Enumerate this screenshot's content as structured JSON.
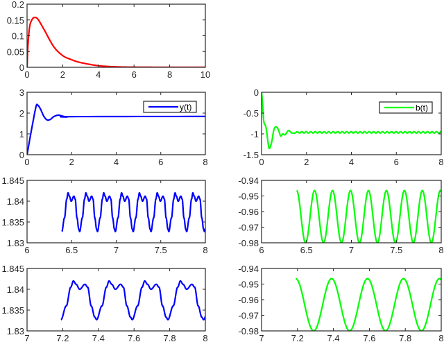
{
  "chart_data": [
    {
      "type": "line",
      "id": "p1",
      "xlim": [
        0,
        10
      ],
      "ylim": [
        0,
        0.2
      ],
      "xticks": [
        0,
        2,
        4,
        6,
        8,
        10
      ],
      "xtick_labels": [
        "0",
        "2",
        "4",
        "6",
        "8",
        "10"
      ],
      "yticks": [
        0,
        0.05,
        0.1,
        0.15,
        0.2
      ],
      "ytick_labels": [
        "0",
        "0.05",
        "0.1",
        "0.15",
        "0.2"
      ],
      "color": "#ff0000",
      "series": [
        {
          "x": [
            0,
            0.05,
            0.15,
            0.3,
            0.45,
            0.6,
            0.8,
            1,
            1.5,
            2,
            2.5,
            3,
            4,
            5,
            6,
            8,
            10
          ],
          "y": [
            0,
            0.07,
            0.13,
            0.153,
            0.158,
            0.153,
            0.135,
            0.115,
            0.065,
            0.037,
            0.024,
            0.015,
            0.005,
            0.0015,
            0.0005,
            0,
            0
          ]
        }
      ]
    },
    {
      "type": "line",
      "id": "p2",
      "xlim": [
        0,
        8
      ],
      "ylim": [
        0,
        3
      ],
      "xticks": [
        0,
        2,
        4,
        6,
        8
      ],
      "xtick_labels": [
        "0",
        "2",
        "4",
        "6",
        "8"
      ],
      "yticks": [
        0,
        1,
        2,
        3
      ],
      "ytick_labels": [
        "0",
        "1",
        "2",
        "3"
      ],
      "color": "#0000ff",
      "legend": "top-right",
      "series": [
        {
          "name": "y(t)",
          "x": [
            0,
            0.2,
            0.4,
            0.48,
            0.6,
            0.75,
            0.9,
            1.05,
            1.2,
            1.4,
            1.6,
            1.8,
            2,
            8
          ],
          "y": [
            0,
            1.2,
            2.3,
            2.38,
            2.2,
            1.85,
            1.67,
            1.7,
            1.83,
            1.9,
            1.85,
            1.81,
            1.83,
            1.837
          ]
        }
      ]
    },
    {
      "type": "line",
      "id": "p3",
      "xlim": [
        0,
        8
      ],
      "ylim": [
        -1.5,
        0
      ],
      "xticks": [
        0,
        2,
        4,
        6,
        8
      ],
      "xtick_labels": [
        "0",
        "2",
        "4",
        "6",
        "8"
      ],
      "yticks": [
        -1.5,
        -1,
        -0.5,
        0
      ],
      "ytick_labels": [
        "-1.5",
        "-1",
        "-0.5",
        "0"
      ],
      "color": "#00ff00",
      "legend": "top-right",
      "series": [
        {
          "name": "b(t)",
          "x": [
            0,
            0.05,
            0.1,
            0.2,
            0.3,
            0.35,
            0.45,
            0.55,
            0.65,
            0.75,
            0.85,
            0.95,
            1.05,
            1.2,
            1.35,
            1.5
          ],
          "y": [
            0,
            -0.3,
            -0.7,
            -0.85,
            -1.25,
            -1.35,
            -1.2,
            -0.9,
            -0.83,
            -0.9,
            -1.05,
            -1.0,
            -1.02,
            -0.92,
            -0.98,
            -0.98
          ],
          "steady_oscillation": {
            "start": 1.5,
            "end": 8,
            "mean": -0.96325,
            "amplitude": 0.01675,
            "period": 0.2,
            "first_trough": 6.49
          }
        }
      ]
    },
    {
      "type": "line",
      "id": "p4",
      "xlim": [
        6,
        8
      ],
      "ylim": [
        1.83,
        1.845
      ],
      "xticks": [
        6,
        6.5,
        7,
        7.5,
        8
      ],
      "xtick_labels": [
        "6",
        "6.5",
        "7",
        "7.5",
        "8"
      ],
      "yticks": [
        1.83,
        1.835,
        1.84,
        1.845
      ],
      "ytick_labels": [
        "1.83",
        "1.835",
        "1.84",
        "1.845"
      ],
      "color": "#0000ff",
      "series": [
        {
          "start": 6.39,
          "end": 8,
          "periodic": {
            "period": 0.2,
            "first_trough": 6.59,
            "phase": [
              0,
              0.03,
              0.055,
              0.07,
              0.085,
              0.105,
              0.135,
              0.15,
              0.17,
              0.19,
              0.2
            ],
            "value": [
              1.8327,
              1.836,
              1.8405,
              1.842,
              1.8412,
              1.84,
              1.8412,
              1.8405,
              1.836,
              1.8333,
              1.8327
            ]
          }
        }
      ]
    },
    {
      "type": "line",
      "id": "p5",
      "xlim": [
        6,
        8
      ],
      "ylim": [
        -0.98,
        -0.94
      ],
      "xticks": [
        6,
        6.5,
        7,
        7.5,
        8
      ],
      "xtick_labels": [
        "6",
        "6.5",
        "7",
        "7.5",
        "8"
      ],
      "yticks": [
        -0.98,
        -0.97,
        -0.96,
        -0.95,
        -0.94
      ],
      "ytick_labels": [
        "-0.98",
        "-0.97",
        "-0.96",
        "-0.95",
        "-0.94"
      ],
      "color": "#00ff00",
      "series": [
        {
          "start": 6.39,
          "end": 8,
          "sinusoid": {
            "mean": -0.96325,
            "amplitude": 0.01675,
            "period": 0.2,
            "first_trough": 6.49
          }
        }
      ]
    },
    {
      "type": "line",
      "id": "p6",
      "xlim": [
        7,
        8
      ],
      "ylim": [
        1.83,
        1.845
      ],
      "xticks": [
        7,
        7.2,
        7.4,
        7.6,
        7.8,
        8
      ],
      "xtick_labels": [
        "7",
        "7.2",
        "7.4",
        "7.6",
        "7.8",
        "8"
      ],
      "yticks": [
        1.83,
        1.835,
        1.84,
        1.845
      ],
      "ytick_labels": [
        "1.83",
        "1.835",
        "1.84",
        "1.845"
      ],
      "color": "#0000ff",
      "series": [
        {
          "start": 7.19,
          "end": 8,
          "periodic": {
            "period": 0.2,
            "first_trough": 6.59,
            "phase": [
              0,
              0.03,
              0.055,
              0.07,
              0.085,
              0.105,
              0.135,
              0.15,
              0.17,
              0.19,
              0.2
            ],
            "value": [
              1.8327,
              1.836,
              1.8405,
              1.842,
              1.8412,
              1.84,
              1.8412,
              1.8405,
              1.836,
              1.8333,
              1.8327
            ]
          }
        }
      ]
    },
    {
      "type": "line",
      "id": "p7",
      "xlim": [
        7,
        8
      ],
      "ylim": [
        -0.98,
        -0.94
      ],
      "xticks": [
        7,
        7.2,
        7.4,
        7.6,
        7.8,
        8
      ],
      "xtick_labels": [
        "7",
        "7.2",
        "7.4",
        "7.6",
        "7.8",
        "8"
      ],
      "yticks": [
        -0.98,
        -0.97,
        -0.96,
        -0.95,
        -0.94
      ],
      "ytick_labels": [
        "-0.98",
        "-0.97",
        "-0.96",
        "-0.95",
        "-0.94"
      ],
      "color": "#00ff00",
      "series": [
        {
          "start": 7.19,
          "end": 8,
          "sinusoid": {
            "mean": -0.96325,
            "amplitude": 0.01675,
            "period": 0.2,
            "first_trough": 6.49
          }
        }
      ]
    }
  ]
}
